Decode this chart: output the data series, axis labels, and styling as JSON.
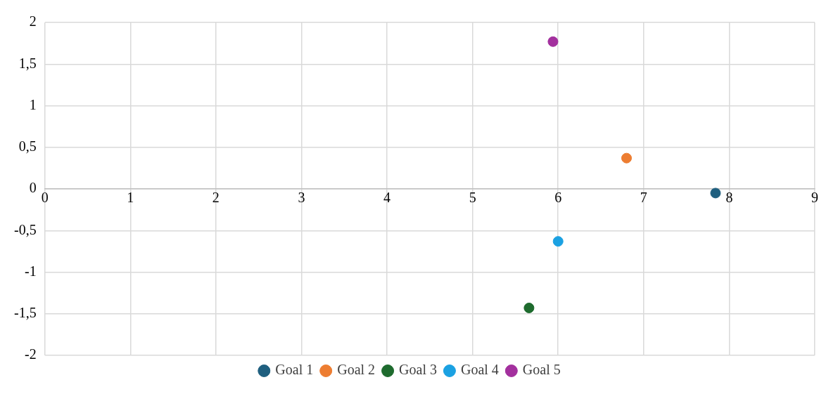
{
  "chart_data": {
    "type": "scatter",
    "xlim": [
      0,
      9
    ],
    "xticks": [
      0,
      1,
      2,
      3,
      4,
      5,
      6,
      7,
      8,
      9
    ],
    "ylim": [
      -2,
      2
    ],
    "yticks": [
      {
        "value": -2,
        "label": "-2"
      },
      {
        "value": -1.5,
        "label": "-1,5"
      },
      {
        "value": -1,
        "label": "-1"
      },
      {
        "value": -0.5,
        "label": "-0,5"
      },
      0,
      {
        "value": 0.5,
        "label": "0,5"
      },
      1,
      {
        "value": 1.5,
        "label": "1,5"
      },
      2
    ],
    "grid": true,
    "legend": "bottom",
    "marker": "circle",
    "series": [
      {
        "name": "Goal 1",
        "color": "#1f5f7f",
        "x": [
          7.84
        ],
        "values": [
          -0.05
        ]
      },
      {
        "name": "Goal 2",
        "color": "#ed7d31",
        "x": [
          6.8
        ],
        "values": [
          0.37
        ]
      },
      {
        "name": "Goal 3",
        "color": "#1e6b2e",
        "x": [
          5.66
        ],
        "values": [
          -1.43
        ]
      },
      {
        "name": "Goal 4",
        "color": "#1ba1e2",
        "x": [
          6.0
        ],
        "values": [
          -0.63
        ]
      },
      {
        "name": "Goal 5",
        "color": "#a3309e",
        "x": [
          5.94
        ],
        "values": [
          1.77
        ]
      }
    ]
  }
}
